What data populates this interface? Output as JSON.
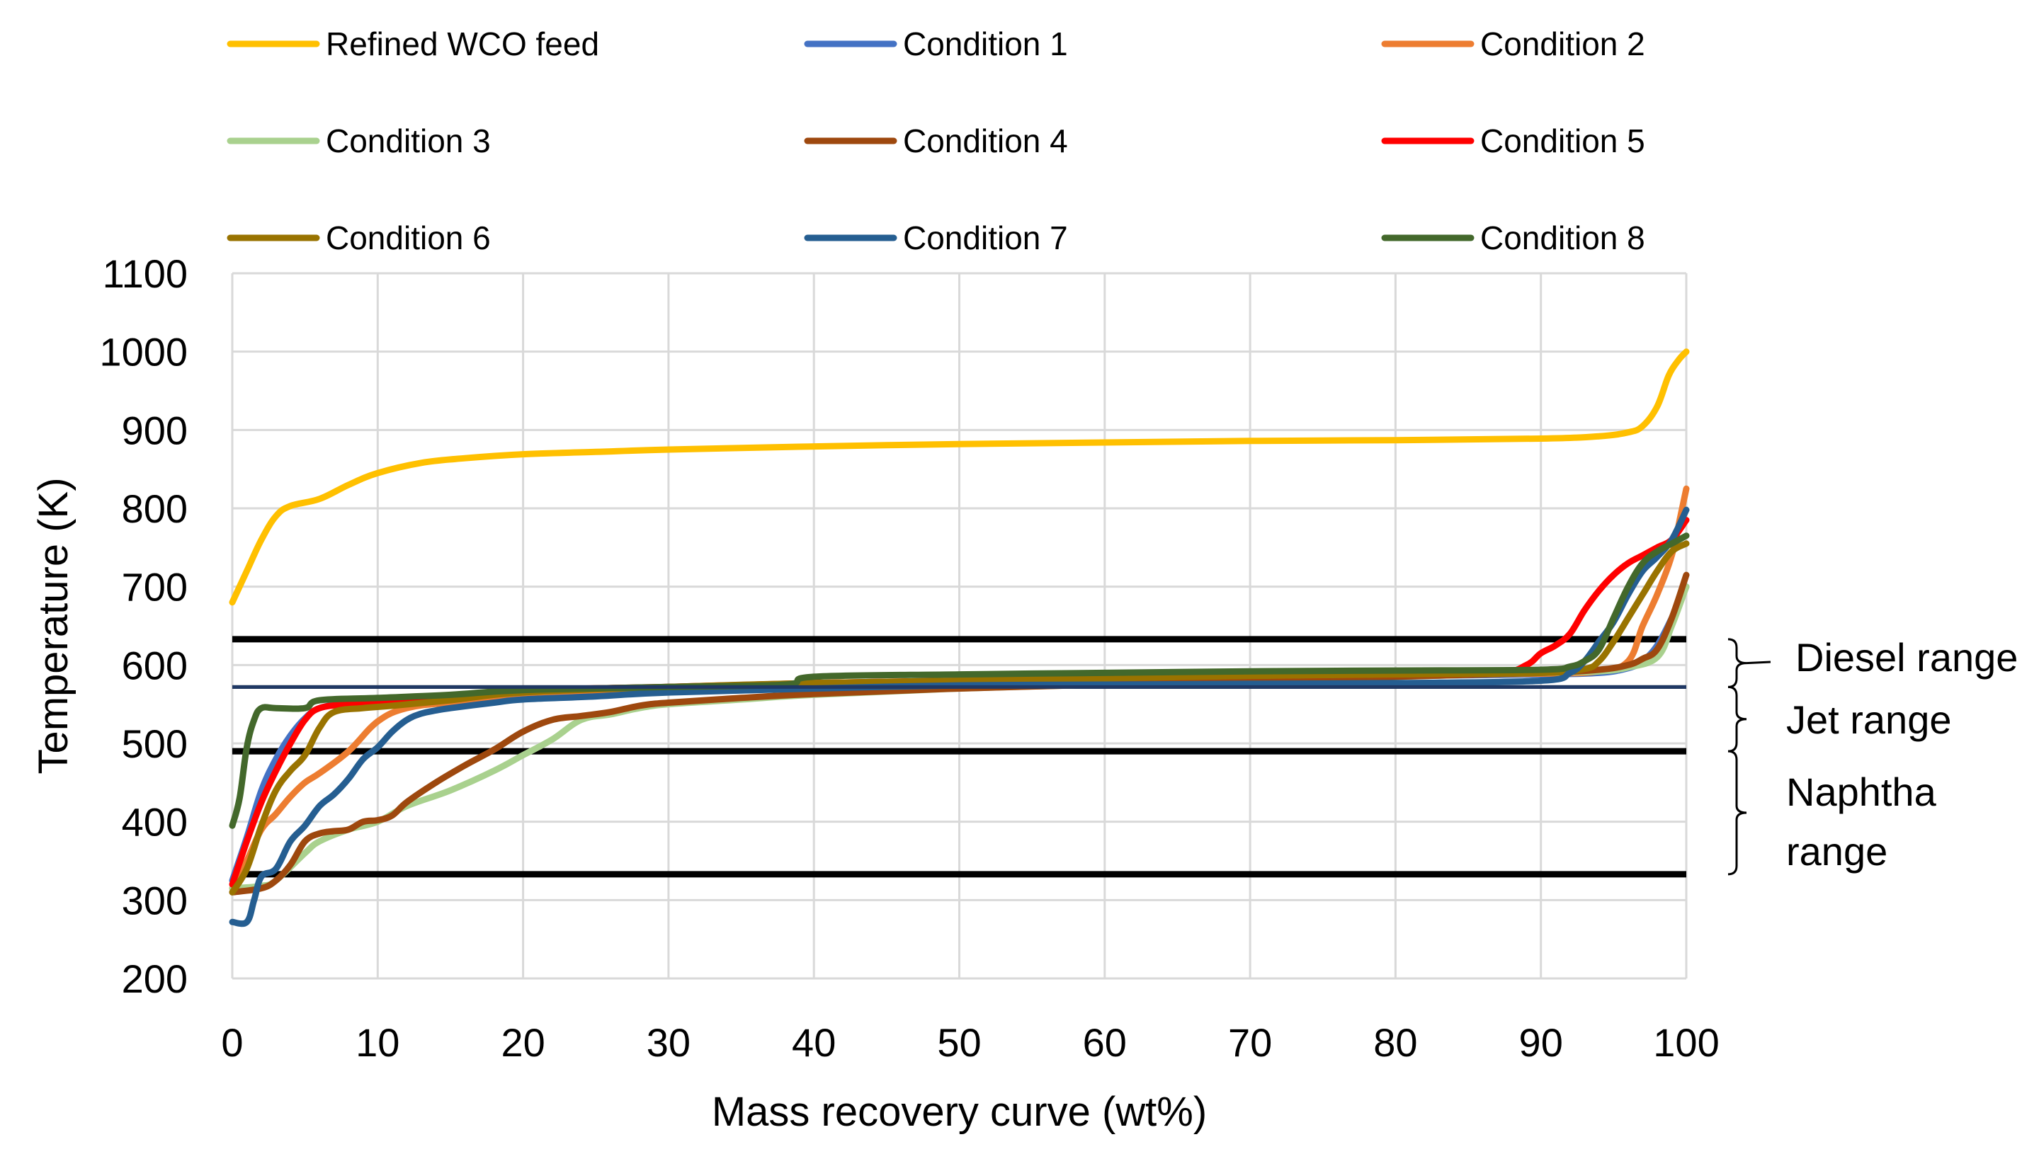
{
  "chart_data": {
    "type": "line",
    "title": "",
    "xlabel": "Mass recovery curve (wt%)",
    "ylabel": "Temperature (K)",
    "xlim": [
      0,
      100
    ],
    "ylim": [
      200,
      1100
    ],
    "x_ticks": [
      0,
      10,
      20,
      30,
      40,
      50,
      60,
      70,
      80,
      90,
      100
    ],
    "y_ticks": [
      200,
      300,
      400,
      500,
      600,
      700,
      800,
      900,
      1000,
      1100
    ],
    "x_tick_labels": [
      "0",
      "10",
      "20",
      "30",
      "40",
      "50",
      "60",
      "70",
      "80",
      "90",
      "100"
    ],
    "y_tick_labels": [
      "200",
      "300",
      "400",
      "500",
      "600",
      "700",
      "800",
      "900",
      "1000",
      "1100"
    ],
    "grid": true,
    "legend_position": "top",
    "series": [
      {
        "name": "Refined WCO feed",
        "color": "#FFC000",
        "points": [
          [
            0,
            680
          ],
          [
            1,
            720
          ],
          [
            2,
            760
          ],
          [
            3,
            790
          ],
          [
            4,
            803
          ],
          [
            6,
            812
          ],
          [
            8,
            830
          ],
          [
            10,
            845
          ],
          [
            13,
            858
          ],
          [
            16,
            864
          ],
          [
            20,
            869
          ],
          [
            25,
            872
          ],
          [
            30,
            875
          ],
          [
            40,
            879
          ],
          [
            50,
            882
          ],
          [
            60,
            884
          ],
          [
            70,
            886
          ],
          [
            80,
            887
          ],
          [
            90,
            889
          ],
          [
            94,
            892
          ],
          [
            96,
            897
          ],
          [
            97,
            905
          ],
          [
            98,
            930
          ],
          [
            98.8,
            970
          ],
          [
            99.5,
            990
          ],
          [
            100,
            1000
          ]
        ]
      },
      {
        "name": "Condition 1",
        "color": "#4472C4",
        "points": [
          [
            0,
            325
          ],
          [
            1,
            380
          ],
          [
            2,
            440
          ],
          [
            3,
            480
          ],
          [
            4,
            510
          ],
          [
            5,
            532
          ],
          [
            6,
            545
          ],
          [
            8,
            552
          ],
          [
            10,
            556
          ],
          [
            15,
            560
          ],
          [
            20,
            565
          ],
          [
            30,
            570
          ],
          [
            40,
            575
          ],
          [
            50,
            578
          ],
          [
            60,
            580
          ],
          [
            70,
            583
          ],
          [
            80,
            586
          ],
          [
            90,
            588
          ],
          [
            94,
            590
          ],
          [
            96,
            596
          ],
          [
            97,
            605
          ],
          [
            98,
            625
          ],
          [
            99,
            660
          ],
          [
            100,
            700
          ]
        ]
      },
      {
        "name": "Condition 2",
        "color": "#ED7D31",
        "points": [
          [
            0,
            315
          ],
          [
            1,
            350
          ],
          [
            2,
            390
          ],
          [
            3,
            410
          ],
          [
            4,
            432
          ],
          [
            5,
            450
          ],
          [
            6,
            462
          ],
          [
            8,
            490
          ],
          [
            10,
            528
          ],
          [
            12,
            545
          ],
          [
            15,
            552
          ],
          [
            20,
            558
          ],
          [
            30,
            568
          ],
          [
            40,
            574
          ],
          [
            50,
            578
          ],
          [
            60,
            581
          ],
          [
            70,
            584
          ],
          [
            80,
            587
          ],
          [
            90,
            589
          ],
          [
            94,
            592
          ],
          [
            96,
            605
          ],
          [
            97,
            650
          ],
          [
            98,
            690
          ],
          [
            99,
            740
          ],
          [
            99.6,
            790
          ],
          [
            100,
            825
          ]
        ]
      },
      {
        "name": "Condition 3",
        "color": "#A9D18E",
        "points": [
          [
            0,
            315
          ],
          [
            2,
            318
          ],
          [
            3,
            325
          ],
          [
            5,
            360
          ],
          [
            6,
            375
          ],
          [
            8,
            390
          ],
          [
            10,
            400
          ],
          [
            12,
            420
          ],
          [
            15,
            440
          ],
          [
            18,
            465
          ],
          [
            20,
            485
          ],
          [
            22,
            505
          ],
          [
            24,
            530
          ],
          [
            26,
            537
          ],
          [
            28,
            545
          ],
          [
            30,
            550
          ],
          [
            35,
            556
          ],
          [
            40,
            562
          ],
          [
            50,
            570
          ],
          [
            60,
            575
          ],
          [
            70,
            580
          ],
          [
            80,
            585
          ],
          [
            90,
            590
          ],
          [
            94,
            592
          ],
          [
            96,
            597
          ],
          [
            98,
            610
          ],
          [
            99,
            650
          ],
          [
            100,
            700
          ]
        ]
      },
      {
        "name": "Condition 4",
        "color": "#9E480E",
        "points": [
          [
            0,
            310
          ],
          [
            2,
            315
          ],
          [
            3,
            325
          ],
          [
            4,
            345
          ],
          [
            5,
            375
          ],
          [
            6,
            385
          ],
          [
            7,
            388
          ],
          [
            8,
            390
          ],
          [
            9,
            400
          ],
          [
            10,
            402
          ],
          [
            11,
            408
          ],
          [
            12,
            425
          ],
          [
            14,
            450
          ],
          [
            16,
            472
          ],
          [
            18,
            492
          ],
          [
            20,
            515
          ],
          [
            22,
            530
          ],
          [
            24,
            535
          ],
          [
            26,
            540
          ],
          [
            28,
            548
          ],
          [
            30,
            552
          ],
          [
            35,
            558
          ],
          [
            40,
            563
          ],
          [
            50,
            570
          ],
          [
            60,
            575
          ],
          [
            70,
            580
          ],
          [
            80,
            585
          ],
          [
            90,
            590
          ],
          [
            94,
            594
          ],
          [
            96,
            600
          ],
          [
            97,
            608
          ],
          [
            98,
            620
          ],
          [
            99,
            660
          ],
          [
            100,
            715
          ]
        ]
      },
      {
        "name": "Condition 5",
        "color": "#FF0000",
        "points": [
          [
            0,
            320
          ],
          [
            1,
            375
          ],
          [
            2,
            425
          ],
          [
            3,
            465
          ],
          [
            4,
            500
          ],
          [
            5,
            530
          ],
          [
            6,
            545
          ],
          [
            8,
            550
          ],
          [
            10,
            552
          ],
          [
            15,
            560
          ],
          [
            20,
            568
          ],
          [
            30,
            572
          ],
          [
            40,
            577
          ],
          [
            50,
            580
          ],
          [
            60,
            583
          ],
          [
            70,
            586
          ],
          [
            80,
            588
          ],
          [
            87,
            590
          ],
          [
            89,
            600
          ],
          [
            90,
            615
          ],
          [
            91,
            625
          ],
          [
            92,
            640
          ],
          [
            93,
            670
          ],
          [
            94,
            695
          ],
          [
            95,
            715
          ],
          [
            96,
            730
          ],
          [
            97,
            740
          ],
          [
            98,
            750
          ],
          [
            99,
            760
          ],
          [
            100,
            785
          ]
        ]
      },
      {
        "name": "Condition 6",
        "color": "#997300",
        "points": [
          [
            0,
            310
          ],
          [
            1,
            340
          ],
          [
            2,
            395
          ],
          [
            3,
            440
          ],
          [
            4,
            465
          ],
          [
            5,
            485
          ],
          [
            6,
            520
          ],
          [
            7,
            540
          ],
          [
            9,
            545
          ],
          [
            11,
            548
          ],
          [
            15,
            555
          ],
          [
            20,
            565
          ],
          [
            30,
            572
          ],
          [
            40,
            577
          ],
          [
            50,
            580
          ],
          [
            60,
            583
          ],
          [
            70,
            586
          ],
          [
            80,
            588
          ],
          [
            90,
            590
          ],
          [
            93,
            595
          ],
          [
            94,
            605
          ],
          [
            95,
            630
          ],
          [
            96,
            660
          ],
          [
            97,
            690
          ],
          [
            98,
            720
          ],
          [
            99,
            745
          ],
          [
            100,
            755
          ]
        ]
      },
      {
        "name": "Condition 7",
        "color": "#255E91",
        "points": [
          [
            0,
            272
          ],
          [
            1,
            272
          ],
          [
            1.5,
            300
          ],
          [
            2,
            330
          ],
          [
            3,
            340
          ],
          [
            4,
            375
          ],
          [
            5,
            395
          ],
          [
            6,
            420
          ],
          [
            7,
            435
          ],
          [
            8,
            455
          ],
          [
            9,
            480
          ],
          [
            10,
            495
          ],
          [
            11,
            515
          ],
          [
            12,
            530
          ],
          [
            13,
            538
          ],
          [
            14,
            542
          ],
          [
            15,
            545
          ],
          [
            18,
            552
          ],
          [
            20,
            556
          ],
          [
            25,
            560
          ],
          [
            30,
            565
          ],
          [
            40,
            570
          ],
          [
            50,
            574
          ],
          [
            60,
            575
          ],
          [
            70,
            576
          ],
          [
            80,
            577
          ],
          [
            90,
            580
          ],
          [
            92,
            590
          ],
          [
            93,
            605
          ],
          [
            94,
            630
          ],
          [
            95,
            655
          ],
          [
            96,
            690
          ],
          [
            97,
            720
          ],
          [
            98,
            738
          ],
          [
            99,
            760
          ],
          [
            100,
            798
          ]
        ]
      },
      {
        "name": "Condition 8",
        "color": "#43682B",
        "points": [
          [
            0,
            395
          ],
          [
            0.5,
            430
          ],
          [
            1,
            495
          ],
          [
            1.5,
            530
          ],
          [
            2,
            545
          ],
          [
            3,
            545
          ],
          [
            5,
            545
          ],
          [
            6,
            555
          ],
          [
            10,
            558
          ],
          [
            15,
            562
          ],
          [
            20,
            568
          ],
          [
            30,
            572
          ],
          [
            38,
            575
          ],
          [
            40,
            585
          ],
          [
            50,
            588
          ],
          [
            60,
            590
          ],
          [
            70,
            592
          ],
          [
            80,
            593
          ],
          [
            90,
            594
          ],
          [
            92,
            598
          ],
          [
            93,
            605
          ],
          [
            94,
            620
          ],
          [
            95,
            660
          ],
          [
            96,
            700
          ],
          [
            97,
            730
          ],
          [
            98,
            745
          ],
          [
            99,
            755
          ],
          [
            100,
            765
          ]
        ]
      }
    ],
    "reference_lines": [
      {
        "value": 633,
        "color": "#000000"
      },
      {
        "value": 572,
        "color": "#000000"
      },
      {
        "value": 490,
        "color": "#000000"
      },
      {
        "value": 333,
        "color": "#000000"
      }
    ],
    "ranges": [
      {
        "label": "Diesel range",
        "from": 572,
        "to": 633
      },
      {
        "label": "Jet range",
        "from": 490,
        "to": 572
      },
      {
        "label": "Naphtha range",
        "lines": [
          "Naphtha",
          "range"
        ],
        "from": 333,
        "to": 490
      }
    ]
  }
}
